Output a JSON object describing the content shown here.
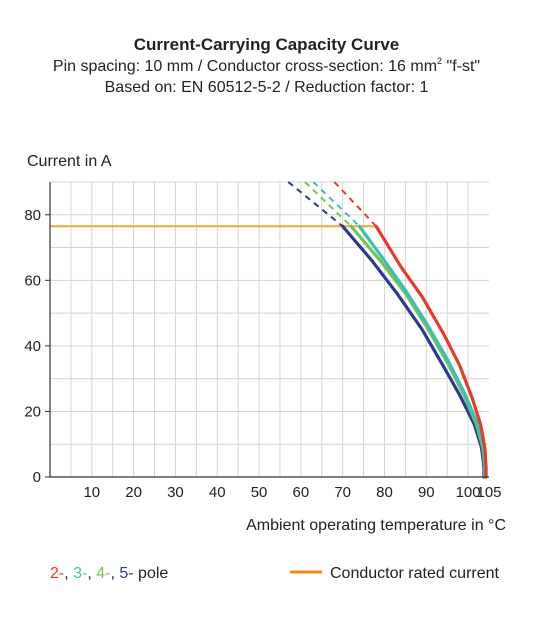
{
  "chart_data": {
    "type": "line",
    "title": "Current-Carrying Capacity Curve",
    "subtitle_line1_prefix": "Pin spacing: 10 mm / Conductor cross-section: 16 mm",
    "subtitle_line1_sup": "2",
    "subtitle_line1_suffix": " \"f-st\"",
    "subtitle_line2": "Based on: EN 60512-5-2 / Reduction factor: 1",
    "ylabel": "Current in A",
    "xlabel": "Ambient operating temperature in °C",
    "xlim": [
      0,
      105
    ],
    "ylim": [
      0,
      90
    ],
    "x_ticks": [
      "10",
      "20",
      "30",
      "40",
      "50",
      "60",
      "70",
      "80",
      "90",
      "100",
      "105"
    ],
    "x_tick_values": [
      10,
      20,
      30,
      40,
      50,
      60,
      70,
      80,
      90,
      100,
      105
    ],
    "y_ticks": [
      "0",
      "20",
      "40",
      "60",
      "80"
    ],
    "y_tick_values": [
      0,
      20,
      40,
      60,
      80
    ],
    "grid": true,
    "series": [
      {
        "color": "#e8392c",
        "dashed": [
          [
            68,
            90
          ],
          [
            78,
            76.5
          ]
        ],
        "values": [
          [
            78,
            76.5
          ],
          [
            84,
            64
          ],
          [
            89,
            55
          ],
          [
            94,
            44
          ],
          [
            98,
            34
          ],
          [
            101,
            24
          ],
          [
            103,
            16
          ],
          [
            104,
            9
          ],
          [
            104.3,
            3
          ],
          [
            104.3,
            0
          ]
        ]
      },
      {
        "color": "#3fbfb2",
        "dashed": [
          [
            63,
            90
          ],
          [
            74,
            76.5
          ]
        ],
        "values": [
          [
            74,
            76.5
          ],
          [
            80,
            66
          ],
          [
            85,
            57
          ],
          [
            90,
            47
          ],
          [
            95,
            36
          ],
          [
            99,
            26
          ],
          [
            102,
            17
          ],
          [
            103.5,
            10
          ],
          [
            104,
            4
          ],
          [
            104,
            0
          ]
        ]
      },
      {
        "color": "#74c455",
        "dashed": [
          [
            61,
            90
          ],
          [
            72,
            76.5
          ]
        ],
        "values": [
          [
            72,
            76.5
          ],
          [
            79,
            66
          ],
          [
            85,
            56
          ],
          [
            90,
            46
          ],
          [
            95,
            35
          ],
          [
            99,
            25
          ],
          [
            102,
            16
          ],
          [
            103.5,
            9
          ],
          [
            104,
            3
          ],
          [
            104,
            0
          ]
        ]
      },
      {
        "color": "#2b3a8f",
        "dashed": [
          [
            57,
            90
          ],
          [
            70,
            76.5
          ]
        ],
        "values": [
          [
            70,
            76.5
          ],
          [
            77,
            66
          ],
          [
            83,
            56
          ],
          [
            89,
            45
          ],
          [
            94,
            34
          ],
          [
            98,
            25
          ],
          [
            101.5,
            16
          ],
          [
            103.2,
            9
          ],
          [
            103.8,
            3
          ],
          [
            103.8,
            0
          ]
        ]
      }
    ],
    "rated_current": {
      "value": 76.5,
      "x_from": 0,
      "x_to": 78,
      "color": "#f3a531"
    },
    "legend_pole_parts": [
      {
        "text": "2-",
        "color": "#e8392c"
      },
      {
        "text": ", ",
        "color": "#222222"
      },
      {
        "text": "3-",
        "color": "#3fbfb2"
      },
      {
        "text": ", ",
        "color": "#222222"
      },
      {
        "text": "4-",
        "color": "#74c455"
      },
      {
        "text": ", ",
        "color": "#222222"
      },
      {
        "text": "5-",
        "color": "#2b3a8f"
      },
      {
        "text": " pole",
        "color": "#222222"
      }
    ],
    "legend_rated": "Conductor rated current",
    "legend_rated_color": "#f08a1e"
  }
}
